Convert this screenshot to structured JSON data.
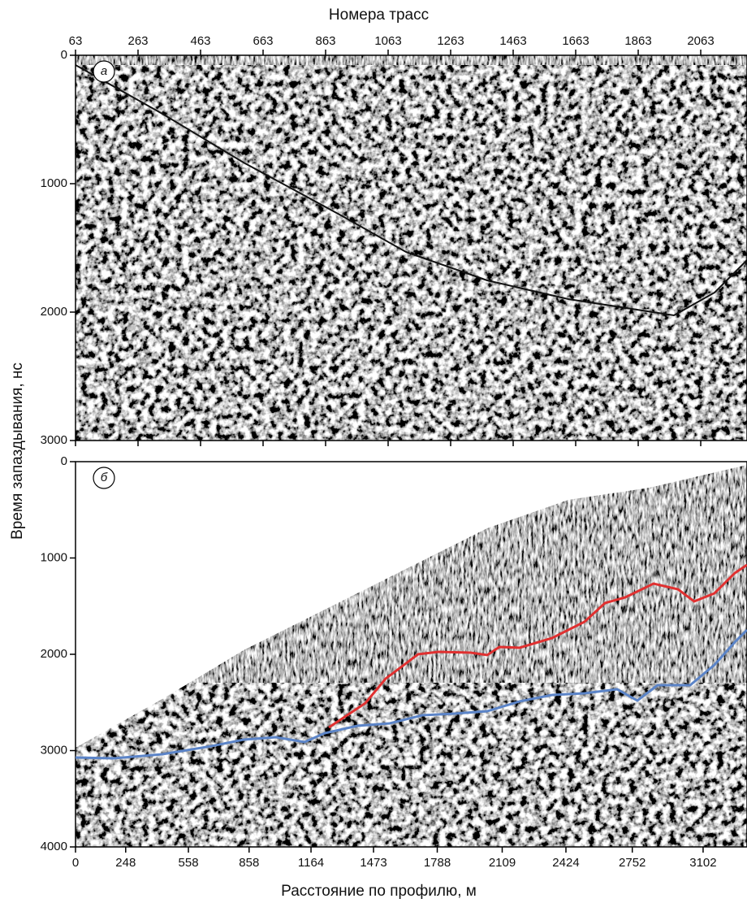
{
  "chart_data": [
    {
      "type": "radargram",
      "panel_label": "а",
      "xlabel": "Номера трасс",
      "ylabel": "Время запаздывания, нс",
      "xlim": [
        63,
        2211
      ],
      "xticks": [
        63,
        263,
        463,
        663,
        863,
        1063,
        1263,
        1463,
        1663,
        1863,
        2063
      ],
      "ylim": [
        0,
        3000
      ],
      "yticks": [
        0,
        1000,
        2000,
        3000
      ]
    },
    {
      "type": "line",
      "panel_label": "б",
      "xlabel": "Расстояние по профилю, м",
      "xlim": [
        0,
        3319
      ],
      "xticks": [
        0,
        248,
        558,
        858,
        1164,
        1473,
        1788,
        2109,
        2424,
        2752,
        3102
      ],
      "ylim": [
        0,
        4000
      ],
      "yticks": [
        0,
        1000,
        2000,
        3000,
        4000
      ],
      "series": [
        {
          "color": "#e03030",
          "x": [
            1252,
            1433,
            1533,
            1613,
            1693,
            1794,
            1954,
            2035,
            2095,
            2195,
            2356,
            2516,
            2617,
            2717,
            2857,
            2978,
            3058,
            3158,
            3259,
            3319
          ],
          "values": [
            2760,
            2506,
            2253,
            2127,
            2000,
            1975,
            1983,
            2008,
            1924,
            1932,
            1831,
            1662,
            1468,
            1409,
            1266,
            1325,
            1451,
            1367,
            1156,
            1072
          ]
        },
        {
          "color": "#5b84c8",
          "x": [
            0,
            189,
            429,
            670,
            831,
            991,
            1132,
            1232,
            1393,
            1553,
            1714,
            1874,
            2035,
            2195,
            2356,
            2516,
            2677,
            2777,
            2877,
            3038,
            3158,
            3259,
            3319
          ],
          "values": [
            3072,
            3080,
            3038,
            2954,
            2886,
            2861,
            2911,
            2819,
            2743,
            2717,
            2633,
            2616,
            2591,
            2489,
            2422,
            2405,
            2363,
            2481,
            2321,
            2321,
            2110,
            1873,
            1747
          ]
        }
      ]
    }
  ]
}
